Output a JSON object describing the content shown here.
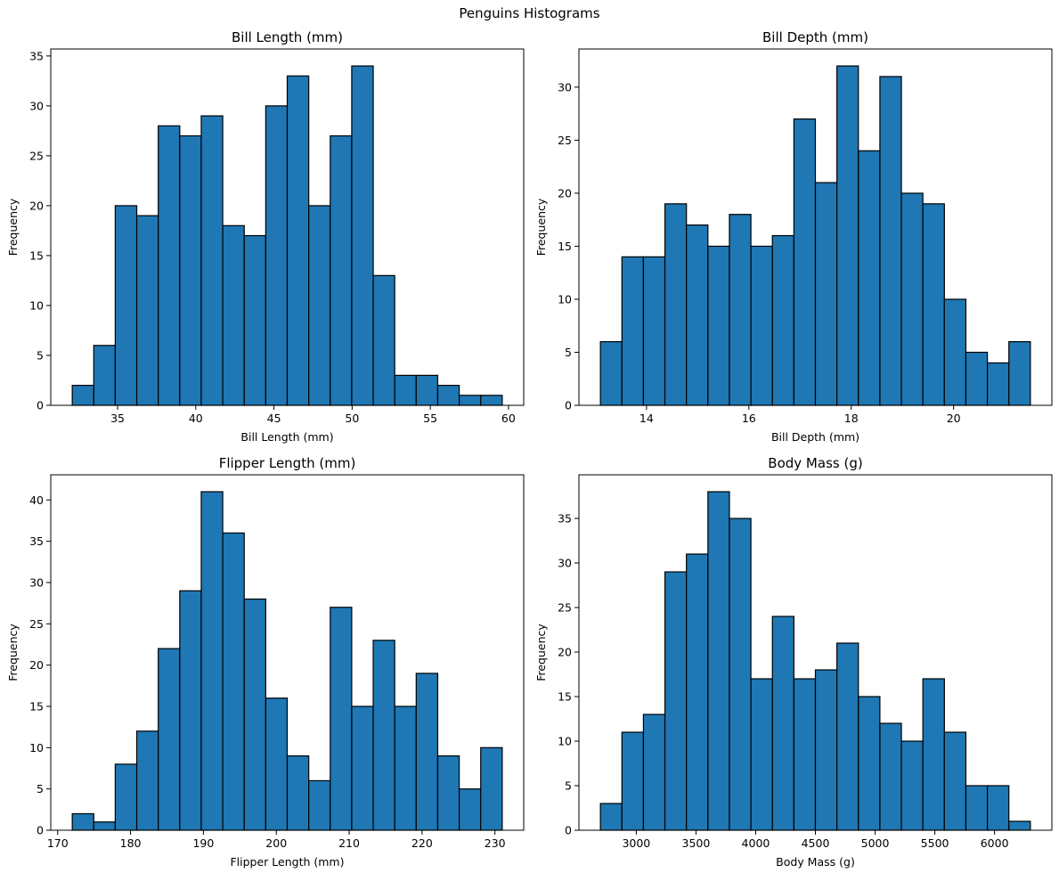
{
  "figure": {
    "suptitle": "Penguins Histograms",
    "bar_color": "#1f77b4",
    "edge_color": "#000000"
  },
  "chart_data": [
    {
      "type": "bar",
      "title": "Bill Length (mm)",
      "xlabel": "Bill Length (mm)",
      "ylabel": "Frequency",
      "bin_range": [
        32.1,
        59.6
      ],
      "bins": 20,
      "values": [
        2,
        6,
        20,
        19,
        28,
        27,
        29,
        18,
        17,
        30,
        33,
        20,
        27,
        34,
        13,
        3,
        3,
        2,
        1,
        1
      ],
      "xlim": [
        30.725,
        60.975
      ],
      "ylim": [
        0,
        35.7
      ],
      "xticks": [
        35,
        40,
        45,
        50,
        55,
        60
      ],
      "xtick_labels": [
        "35",
        "40",
        "45",
        "50",
        "55",
        "60"
      ],
      "yticks": [
        0,
        5,
        10,
        15,
        20,
        25,
        30,
        35
      ],
      "ytick_labels": [
        "0",
        "5",
        "10",
        "15",
        "20",
        "25",
        "30",
        "35"
      ]
    },
    {
      "type": "bar",
      "title": "Bill Depth (mm)",
      "xlabel": "Bill Depth (mm)",
      "ylabel": "Frequency",
      "bin_range": [
        13.1,
        21.5
      ],
      "bins": 20,
      "values": [
        6,
        14,
        14,
        19,
        17,
        15,
        18,
        15,
        16,
        27,
        21,
        32,
        24,
        31,
        20,
        19,
        10,
        5,
        4,
        6
      ],
      "xlim": [
        12.68,
        21.92
      ],
      "ylim": [
        0,
        33.6
      ],
      "xticks": [
        14,
        16,
        18,
        20
      ],
      "xtick_labels": [
        "14",
        "16",
        "18",
        "20"
      ],
      "yticks": [
        0,
        5,
        10,
        15,
        20,
        25,
        30
      ],
      "ytick_labels": [
        "0",
        "5",
        "10",
        "15",
        "20",
        "25",
        "30"
      ]
    },
    {
      "type": "bar",
      "title": "Flipper Length (mm)",
      "xlabel": "Flipper Length (mm)",
      "ylabel": "Frequency",
      "bin_range": [
        172,
        231
      ],
      "bins": 20,
      "values": [
        2,
        1,
        8,
        12,
        22,
        29,
        41,
        36,
        28,
        16,
        9,
        6,
        27,
        15,
        23,
        15,
        19,
        9,
        5,
        10
      ],
      "xlim": [
        169.05,
        233.95
      ],
      "ylim": [
        0,
        43.05
      ],
      "xticks": [
        170,
        180,
        190,
        200,
        210,
        220,
        230
      ],
      "xtick_labels": [
        "170",
        "180",
        "190",
        "200",
        "210",
        "220",
        "230"
      ],
      "yticks": [
        0,
        5,
        10,
        15,
        20,
        25,
        30,
        35,
        40
      ],
      "ytick_labels": [
        "0",
        "5",
        "10",
        "15",
        "20",
        "25",
        "30",
        "35",
        "40"
      ]
    },
    {
      "type": "bar",
      "title": "Body Mass (g)",
      "xlabel": "Body Mass (g)",
      "ylabel": "Frequency",
      "bin_range": [
        2700,
        6300
      ],
      "bins": 20,
      "values": [
        3,
        11,
        13,
        29,
        31,
        38,
        35,
        17,
        24,
        17,
        18,
        21,
        15,
        12,
        10,
        17,
        11,
        5,
        5,
        1
      ],
      "xlim": [
        2520,
        6480
      ],
      "ylim": [
        0,
        39.9
      ],
      "xticks": [
        3000,
        3500,
        4000,
        4500,
        5000,
        5500,
        6000
      ],
      "xtick_labels": [
        "3000",
        "3500",
        "4000",
        "4500",
        "5000",
        "5500",
        "6000"
      ],
      "yticks": [
        0,
        5,
        10,
        15,
        20,
        25,
        30,
        35
      ],
      "ytick_labels": [
        "0",
        "5",
        "10",
        "15",
        "20",
        "25",
        "30",
        "35"
      ]
    }
  ]
}
